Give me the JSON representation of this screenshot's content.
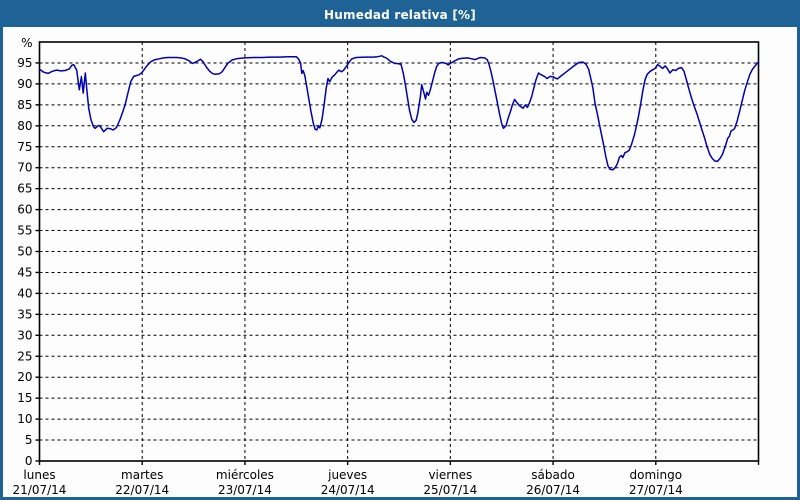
{
  "window": {
    "title": "Humedad relativa [%]"
  },
  "colors": {
    "titlebar_bg": "#1F6396",
    "border": "#1F6396",
    "content_bg": "#FDFDFD",
    "line": "#0000B4",
    "grid": "#000000",
    "axis": "#000000",
    "text": "#000000",
    "title_text": "#FFFFFF"
  },
  "chart_data": {
    "type": "line",
    "title": "Humedad relativa [%]",
    "ylabel": "%",
    "xlabel": "",
    "ylim": [
      0,
      100
    ],
    "y_ticks": [
      0,
      5,
      10,
      15,
      20,
      25,
      30,
      35,
      40,
      45,
      50,
      55,
      60,
      65,
      70,
      75,
      80,
      85,
      90,
      95
    ],
    "grid": "dashed",
    "legend_position": "none",
    "x_total_hours": 168,
    "hours_per_day": 24,
    "x_days": [
      {
        "name": "lunes",
        "date": "21/07/14"
      },
      {
        "name": "martes",
        "date": "22/07/14"
      },
      {
        "name": "miércoles",
        "date": "23/07/14"
      },
      {
        "name": "jueves",
        "date": "24/07/14"
      },
      {
        "name": "viernes",
        "date": "25/07/14"
      },
      {
        "name": "sábado",
        "date": "26/07/14"
      },
      {
        "name": "domingo",
        "date": "27/07/14"
      }
    ],
    "series": [
      {
        "name": "Humedad relativa",
        "unit": "%",
        "points": [
          [
            0,
            93.5
          ],
          [
            1,
            92.8
          ],
          [
            2,
            92.5
          ],
          [
            3,
            93.0
          ],
          [
            4,
            93.3
          ],
          [
            5,
            93.1
          ],
          [
            6,
            93.2
          ],
          [
            7,
            93.6
          ],
          [
            7.5,
            94.4
          ],
          [
            8,
            94.6
          ],
          [
            8.7,
            93.3
          ],
          [
            9.3,
            88.6
          ],
          [
            9.8,
            91.7
          ],
          [
            10.2,
            87.8
          ],
          [
            10.7,
            92.6
          ],
          [
            11.1,
            88.2
          ],
          [
            11.5,
            84.2
          ],
          [
            12,
            81.5
          ],
          [
            12.6,
            79.8
          ],
          [
            13,
            79.4
          ],
          [
            13.8,
            80.1
          ],
          [
            14.2,
            79.8
          ],
          [
            15,
            78.6
          ],
          [
            15.8,
            79.4
          ],
          [
            16.6,
            79.3
          ],
          [
            17.2,
            79.0
          ],
          [
            18,
            79.6
          ],
          [
            18.8,
            81.5
          ],
          [
            19.5,
            83.5
          ],
          [
            20,
            85.0
          ],
          [
            20.7,
            88.0
          ],
          [
            21.3,
            90.5
          ],
          [
            22,
            91.8
          ],
          [
            22.7,
            92.0
          ],
          [
            23.3,
            92.2
          ],
          [
            24,
            92.8
          ],
          [
            24.5,
            93.5
          ],
          [
            25,
            94.2
          ],
          [
            26,
            95.3
          ],
          [
            27,
            95.8
          ],
          [
            28,
            96.0
          ],
          [
            29,
            96.2
          ],
          [
            30,
            96.3
          ],
          [
            32,
            96.3
          ],
          [
            33,
            96.2
          ],
          [
            34,
            96.0
          ],
          [
            35,
            95.5
          ],
          [
            35.7,
            94.9
          ],
          [
            36.3,
            95.1
          ],
          [
            37,
            95.5
          ],
          [
            37.6,
            95.9
          ],
          [
            38.2,
            95.3
          ],
          [
            39,
            94.0
          ],
          [
            39.7,
            93.1
          ],
          [
            40.4,
            92.5
          ],
          [
            41,
            92.3
          ],
          [
            42,
            92.4
          ],
          [
            42.7,
            92.9
          ],
          [
            43.4,
            94.0
          ],
          [
            44,
            94.9
          ],
          [
            45,
            95.7
          ],
          [
            46,
            96.0
          ],
          [
            47,
            96.1
          ],
          [
            48,
            96.2
          ],
          [
            50,
            96.3
          ],
          [
            52,
            96.3
          ],
          [
            54,
            96.4
          ],
          [
            56,
            96.4
          ],
          [
            58,
            96.5
          ],
          [
            60,
            96.5
          ],
          [
            60.5,
            96.0
          ],
          [
            61,
            95.0
          ],
          [
            61.3,
            92.5
          ],
          [
            61.6,
            93.2
          ],
          [
            62,
            92.0
          ],
          [
            62.5,
            89.0
          ],
          [
            63,
            86.0
          ],
          [
            63.5,
            83.0
          ],
          [
            64,
            80.5
          ],
          [
            64.4,
            79.2
          ],
          [
            64.8,
            79.0
          ],
          [
            65.2,
            80.0
          ],
          [
            65.5,
            79.5
          ],
          [
            66,
            81.5
          ],
          [
            66.5,
            85.0
          ],
          [
            67,
            89.0
          ],
          [
            67.4,
            91.3
          ],
          [
            67.8,
            90.5
          ],
          [
            68.3,
            91.5
          ],
          [
            69,
            92.2
          ],
          [
            69.5,
            92.8
          ],
          [
            70,
            93.3
          ],
          [
            70.5,
            92.9
          ],
          [
            71,
            93.2
          ],
          [
            71.5,
            93.9
          ],
          [
            72,
            94.6
          ],
          [
            72.5,
            95.4
          ],
          [
            73,
            96.0
          ],
          [
            74,
            96.3
          ],
          [
            76,
            96.4
          ],
          [
            78,
            96.4
          ],
          [
            79,
            96.5
          ],
          [
            80,
            96.7
          ],
          [
            80.5,
            96.4
          ],
          [
            81,
            96.2
          ],
          [
            81.5,
            95.8
          ],
          [
            82,
            95.4
          ],
          [
            83,
            94.9
          ],
          [
            84,
            94.8
          ],
          [
            84.5,
            94.6
          ],
          [
            85,
            92.5
          ],
          [
            85.5,
            89.8
          ],
          [
            86,
            86.5
          ],
          [
            86.5,
            83.5
          ],
          [
            87,
            81.5
          ],
          [
            87.5,
            80.8
          ],
          [
            88,
            81.3
          ],
          [
            88.4,
            83.0
          ],
          [
            89,
            87.0
          ],
          [
            89.3,
            89.8
          ],
          [
            89.8,
            88.0
          ],
          [
            90.2,
            86.4
          ],
          [
            90.5,
            88.0
          ],
          [
            90.9,
            87.3
          ],
          [
            91.3,
            88.5
          ],
          [
            91.8,
            90.5
          ],
          [
            92.3,
            92.5
          ],
          [
            92.8,
            94.2
          ],
          [
            93.3,
            94.9
          ],
          [
            94,
            95.1
          ],
          [
            95,
            94.9
          ],
          [
            95.5,
            94.5
          ],
          [
            96,
            94.9
          ],
          [
            97,
            95.5
          ],
          [
            98,
            96.0
          ],
          [
            99,
            96.1
          ],
          [
            100,
            96.2
          ],
          [
            101,
            96.0
          ],
          [
            101.8,
            95.8
          ],
          [
            102.5,
            96.1
          ],
          [
            103,
            96.3
          ],
          [
            104,
            96.2
          ],
          [
            104.6,
            95.8
          ],
          [
            105,
            94.8
          ],
          [
            105.5,
            92.9
          ],
          [
            106,
            90.5
          ],
          [
            106.5,
            88.0
          ],
          [
            107,
            85.5
          ],
          [
            107.5,
            82.8
          ],
          [
            108,
            80.5
          ],
          [
            108.4,
            79.4
          ],
          [
            109,
            80.0
          ],
          [
            109.5,
            81.8
          ],
          [
            110,
            83.3
          ],
          [
            110.5,
            85.0
          ],
          [
            111,
            86.3
          ],
          [
            111.5,
            85.6
          ],
          [
            112,
            85.0
          ],
          [
            112.5,
            84.5
          ],
          [
            113,
            84.2
          ],
          [
            113.5,
            85.0
          ],
          [
            114,
            84.4
          ],
          [
            114.5,
            85.5
          ],
          [
            115,
            87.0
          ],
          [
            115.5,
            89.0
          ],
          [
            116,
            91.0
          ],
          [
            116.6,
            92.6
          ],
          [
            117.2,
            92.2
          ],
          [
            118,
            91.8
          ],
          [
            118.6,
            91.3
          ],
          [
            119.3,
            91.8
          ],
          [
            120,
            91.7
          ],
          [
            120.5,
            91.4
          ],
          [
            121,
            91.2
          ],
          [
            122,
            92.0
          ],
          [
            123,
            92.8
          ],
          [
            124,
            93.6
          ],
          [
            125,
            94.4
          ],
          [
            126,
            95.1
          ],
          [
            127,
            95.2
          ],
          [
            127.7,
            94.7
          ],
          [
            128.3,
            93.5
          ],
          [
            128.8,
            91.4
          ],
          [
            129.3,
            89.0
          ],
          [
            129.8,
            85.4
          ],
          [
            130.3,
            83.0
          ],
          [
            130.8,
            80.5
          ],
          [
            131.3,
            78.0
          ],
          [
            131.8,
            75.5
          ],
          [
            132.3,
            72.8
          ],
          [
            132.8,
            70.5
          ],
          [
            133.3,
            69.6
          ],
          [
            134,
            69.5
          ],
          [
            134.5,
            70.0
          ],
          [
            135,
            70.9
          ],
          [
            135.5,
            72.5
          ],
          [
            136,
            72.9
          ],
          [
            136.3,
            72.4
          ],
          [
            136.8,
            73.6
          ],
          [
            137.3,
            73.8
          ],
          [
            137.8,
            74.2
          ],
          [
            138.3,
            75.5
          ],
          [
            139,
            77.8
          ],
          [
            139.5,
            80.0
          ],
          [
            140,
            82.5
          ],
          [
            140.5,
            85.4
          ],
          [
            141,
            88.5
          ],
          [
            141.5,
            91.0
          ],
          [
            142,
            92.3
          ],
          [
            142.7,
            93.0
          ],
          [
            143.3,
            93.4
          ],
          [
            144,
            93.8
          ],
          [
            144.4,
            94.6
          ],
          [
            145,
            94.2
          ],
          [
            145.6,
            93.7
          ],
          [
            146.2,
            94.3
          ],
          [
            146.8,
            93.5
          ],
          [
            147.3,
            92.6
          ],
          [
            148,
            93.4
          ],
          [
            148.6,
            93.2
          ],
          [
            149.3,
            93.7
          ],
          [
            150,
            93.9
          ],
          [
            150.6,
            93.0
          ],
          [
            151.2,
            90.8
          ],
          [
            151.8,
            88.5
          ],
          [
            152.4,
            86.5
          ],
          [
            153,
            84.6
          ],
          [
            153.6,
            82.9
          ],
          [
            154.2,
            81.0
          ],
          [
            154.8,
            79.0
          ],
          [
            155.4,
            77.1
          ],
          [
            156,
            75.0
          ],
          [
            156.6,
            73.2
          ],
          [
            157.2,
            72.2
          ],
          [
            157.8,
            71.6
          ],
          [
            158.4,
            71.5
          ],
          [
            159,
            72.2
          ],
          [
            159.6,
            73.2
          ],
          [
            160.2,
            75.0
          ],
          [
            160.8,
            77.0
          ],
          [
            161.2,
            77.5
          ],
          [
            161.6,
            78.8
          ],
          [
            162,
            79.0
          ],
          [
            162.4,
            79.3
          ],
          [
            163,
            81.1
          ],
          [
            163.6,
            83.5
          ],
          [
            164.2,
            86.0
          ],
          [
            164.8,
            88.5
          ],
          [
            165.4,
            90.5
          ],
          [
            166,
            92.3
          ],
          [
            166.6,
            93.5
          ],
          [
            167.2,
            94.3
          ],
          [
            168,
            95.3
          ]
        ]
      }
    ]
  }
}
